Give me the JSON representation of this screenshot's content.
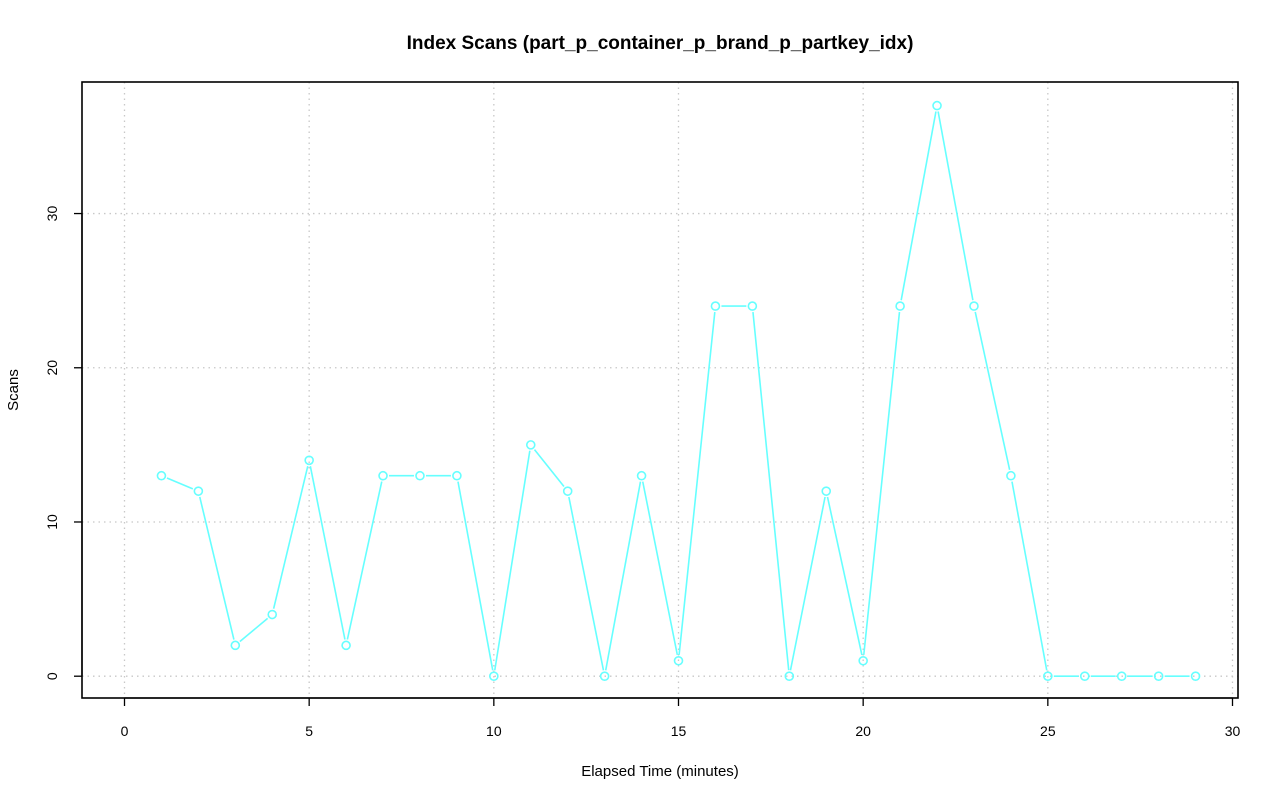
{
  "chart_data": {
    "type": "line",
    "title": "Index Scans (part_p_container_p_brand_p_partkey_idx)",
    "xlabel": "Elapsed Time (minutes)",
    "ylabel": "Scans",
    "xlim": [
      0,
      30
    ],
    "ylim": [
      0,
      37
    ],
    "xticks": [
      0,
      5,
      10,
      15,
      20,
      25,
      30
    ],
    "yticks": [
      0,
      10,
      20,
      30
    ],
    "grid": true,
    "series": [
      {
        "color": "#66ffff",
        "marker": "circle",
        "x": [
          1,
          2,
          3,
          4,
          5,
          6,
          7,
          8,
          9,
          10,
          11,
          12,
          13,
          14,
          15,
          16,
          17,
          18,
          19,
          20,
          21,
          22,
          23,
          24,
          25,
          26,
          27,
          28,
          29
        ],
        "y": [
          13,
          12,
          2,
          4,
          14,
          2,
          13,
          13,
          13,
          0,
          15,
          12,
          0,
          13,
          1,
          24,
          24,
          0,
          12,
          1,
          24,
          37,
          24,
          13,
          0,
          0,
          0,
          0,
          0
        ]
      }
    ]
  }
}
